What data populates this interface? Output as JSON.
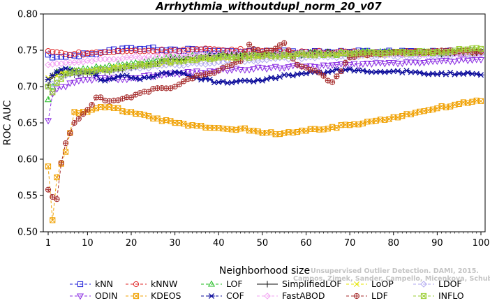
{
  "chart_data": {
    "type": "line",
    "title": "Arrhythmia_withoutdupl_norm_20_v07",
    "xlabel": "Neighborhood size",
    "ylabel": "ROC AUC",
    "xlim": [
      1,
      100
    ],
    "ylim": [
      0.5,
      0.8
    ],
    "x_ticks": [
      "1",
      "10",
      "20",
      "30",
      "40",
      "50",
      "60",
      "70",
      "80",
      "90",
      "100"
    ],
    "x_tick_values": [
      1,
      10,
      20,
      30,
      40,
      50,
      60,
      70,
      80,
      90,
      100
    ],
    "y_ticks": [
      "0.50",
      "0.55",
      "0.60",
      "0.65",
      "0.70",
      "0.75",
      "0.80"
    ],
    "y_tick_values": [
      0.5,
      0.55,
      0.6,
      0.65,
      0.7,
      0.75,
      0.8
    ],
    "grid": false,
    "legend_placement": "bottom",
    "watermark_lines": [
      "Campos, Zimek, Sander, Campello, Micenkova, Schubert, Assent, Houle",
      "Unsupervised Outlier Detection. DAMI, 2015."
    ],
    "series": [
      {
        "name": "kNN",
        "color": "#1f1fd8",
        "dash": "4,3",
        "marker": "square",
        "anchors": [
          [
            1,
            0.744
          ],
          [
            2,
            0.74
          ],
          [
            5,
            0.741
          ],
          [
            10,
            0.745
          ],
          [
            20,
            0.753
          ],
          [
            30,
            0.751
          ],
          [
            40,
            0.749
          ],
          [
            50,
            0.748
          ],
          [
            60,
            0.748
          ],
          [
            70,
            0.748
          ],
          [
            80,
            0.748
          ],
          [
            90,
            0.748
          ],
          [
            100,
            0.748
          ]
        ]
      },
      {
        "name": "kNNW",
        "color": "#e02a2a",
        "dash": "4,3",
        "marker": "circle",
        "anchors": [
          [
            1,
            0.749
          ],
          [
            2,
            0.748
          ],
          [
            5,
            0.745
          ],
          [
            10,
            0.746
          ],
          [
            20,
            0.749
          ],
          [
            30,
            0.75
          ],
          [
            40,
            0.751
          ],
          [
            50,
            0.749
          ],
          [
            60,
            0.748
          ],
          [
            70,
            0.747
          ],
          [
            80,
            0.747
          ],
          [
            90,
            0.747
          ],
          [
            100,
            0.747
          ]
        ]
      },
      {
        "name": "LOF",
        "color": "#22bb22",
        "dash": "4,3",
        "marker": "triangle-up",
        "anchors": [
          [
            1,
            0.682
          ],
          [
            2,
            0.7
          ],
          [
            3,
            0.72
          ],
          [
            5,
            0.722
          ],
          [
            10,
            0.724
          ],
          [
            20,
            0.732
          ],
          [
            30,
            0.74
          ],
          [
            40,
            0.743
          ],
          [
            50,
            0.745
          ],
          [
            60,
            0.745
          ],
          [
            70,
            0.746
          ],
          [
            80,
            0.747
          ],
          [
            90,
            0.747
          ],
          [
            100,
            0.748
          ]
        ]
      },
      {
        "name": "SimplifiedLOF",
        "color": "#111111",
        "dash": "",
        "marker": "plus",
        "anchors": [
          [
            1,
            0.702
          ],
          [
            2,
            0.715
          ],
          [
            3,
            0.72
          ],
          [
            5,
            0.716
          ],
          [
            10,
            0.718
          ],
          [
            20,
            0.726
          ],
          [
            30,
            0.738
          ],
          [
            40,
            0.742
          ],
          [
            50,
            0.744
          ],
          [
            60,
            0.745
          ],
          [
            70,
            0.746
          ],
          [
            80,
            0.746
          ],
          [
            90,
            0.746
          ],
          [
            100,
            0.746
          ]
        ]
      },
      {
        "name": "LoOP",
        "color": "#e5e500",
        "dash": "4,3",
        "marker": "x",
        "anchors": [
          [
            1,
            0.712
          ],
          [
            5,
            0.72
          ],
          [
            10,
            0.722
          ],
          [
            20,
            0.728
          ],
          [
            30,
            0.734
          ],
          [
            40,
            0.738
          ],
          [
            50,
            0.74
          ],
          [
            60,
            0.742
          ],
          [
            70,
            0.744
          ],
          [
            80,
            0.745
          ],
          [
            90,
            0.746
          ],
          [
            100,
            0.747
          ]
        ]
      },
      {
        "name": "LDOF",
        "color": "#b0a8f0",
        "dash": "4,3",
        "marker": "diamond",
        "anchors": [
          [
            1,
            0.7
          ],
          [
            5,
            0.715
          ],
          [
            10,
            0.72
          ],
          [
            20,
            0.725
          ],
          [
            30,
            0.73
          ],
          [
            40,
            0.734
          ],
          [
            50,
            0.737
          ],
          [
            60,
            0.74
          ],
          [
            70,
            0.741
          ],
          [
            80,
            0.742
          ],
          [
            90,
            0.743
          ],
          [
            100,
            0.744
          ]
        ]
      },
      {
        "name": "ODIN",
        "color": "#8a2be2",
        "dash": "4,3",
        "marker": "triangle-down",
        "anchors": [
          [
            1,
            0.653
          ],
          [
            2,
            0.69
          ],
          [
            4,
            0.7
          ],
          [
            10,
            0.71
          ],
          [
            20,
            0.712
          ],
          [
            30,
            0.718
          ],
          [
            40,
            0.722
          ],
          [
            50,
            0.726
          ],
          [
            60,
            0.728
          ],
          [
            70,
            0.73
          ],
          [
            80,
            0.733
          ],
          [
            90,
            0.735
          ],
          [
            100,
            0.737
          ]
        ]
      },
      {
        "name": "KDEOS",
        "color": "#f0a000",
        "dash": "4,3",
        "marker": "square-x",
        "anchors": [
          [
            1,
            0.59
          ],
          [
            2,
            0.516
          ],
          [
            3,
            0.575
          ],
          [
            5,
            0.61
          ],
          [
            7,
            0.665
          ],
          [
            10,
            0.665
          ],
          [
            12,
            0.67
          ],
          [
            15,
            0.672
          ],
          [
            20,
            0.665
          ],
          [
            25,
            0.656
          ],
          [
            30,
            0.65
          ],
          [
            35,
            0.646
          ],
          [
            40,
            0.643
          ],
          [
            45,
            0.642
          ],
          [
            50,
            0.636
          ],
          [
            55,
            0.636
          ],
          [
            60,
            0.639
          ],
          [
            65,
            0.642
          ],
          [
            70,
            0.647
          ],
          [
            75,
            0.652
          ],
          [
            80,
            0.658
          ],
          [
            85,
            0.664
          ],
          [
            90,
            0.67
          ],
          [
            95,
            0.676
          ],
          [
            100,
            0.68
          ]
        ]
      },
      {
        "name": "COF",
        "color": "#0a0a9a",
        "dash": "4,3",
        "marker": "asterisk",
        "anchors": [
          [
            1,
            0.71
          ],
          [
            3,
            0.72
          ],
          [
            5,
            0.725
          ],
          [
            10,
            0.72
          ],
          [
            14,
            0.708
          ],
          [
            18,
            0.715
          ],
          [
            22,
            0.71
          ],
          [
            26,
            0.716
          ],
          [
            30,
            0.72
          ],
          [
            35,
            0.712
          ],
          [
            40,
            0.706
          ],
          [
            45,
            0.708
          ],
          [
            50,
            0.708
          ],
          [
            55,
            0.716
          ],
          [
            60,
            0.718
          ],
          [
            65,
            0.72
          ],
          [
            70,
            0.724
          ],
          [
            75,
            0.72
          ],
          [
            80,
            0.721
          ],
          [
            85,
            0.72
          ],
          [
            90,
            0.717
          ],
          [
            95,
            0.718
          ],
          [
            100,
            0.716
          ]
        ]
      },
      {
        "name": "FastABOD",
        "color": "#f2a0f2",
        "dash": "4,3",
        "marker": "diamond",
        "anchors": [
          [
            1,
            0.73
          ],
          [
            5,
            0.733
          ],
          [
            10,
            0.736
          ],
          [
            20,
            0.74
          ],
          [
            30,
            0.743
          ],
          [
            40,
            0.744
          ],
          [
            50,
            0.745
          ],
          [
            60,
            0.745
          ],
          [
            70,
            0.745
          ],
          [
            80,
            0.745
          ],
          [
            90,
            0.746
          ],
          [
            100,
            0.746
          ]
        ]
      },
      {
        "name": "LDF",
        "color": "#a52a2a",
        "dash": "4,3",
        "marker": "circle-plus",
        "anchors": [
          [
            1,
            0.558
          ],
          [
            2,
            0.548
          ],
          [
            3,
            0.545
          ],
          [
            4,
            0.595
          ],
          [
            5,
            0.622
          ],
          [
            7,
            0.65
          ],
          [
            10,
            0.668
          ],
          [
            12,
            0.685
          ],
          [
            15,
            0.68
          ],
          [
            20,
            0.685
          ],
          [
            25,
            0.697
          ],
          [
            30,
            0.7
          ],
          [
            35,
            0.715
          ],
          [
            40,
            0.722
          ],
          [
            45,
            0.735
          ],
          [
            47,
            0.758
          ],
          [
            50,
            0.745
          ],
          [
            55,
            0.76
          ],
          [
            58,
            0.73
          ],
          [
            62,
            0.722
          ],
          [
            66,
            0.706
          ],
          [
            70,
            0.74
          ],
          [
            75,
            0.745
          ],
          [
            80,
            0.748
          ],
          [
            90,
            0.749
          ],
          [
            100,
            0.748
          ]
        ]
      },
      {
        "name": "INFLO",
        "color": "#9acd32",
        "dash": "4,3",
        "marker": "square-x",
        "anchors": [
          [
            1,
            0.7
          ],
          [
            2,
            0.692
          ],
          [
            3,
            0.705
          ],
          [
            5,
            0.718
          ],
          [
            10,
            0.72
          ],
          [
            20,
            0.728
          ],
          [
            30,
            0.735
          ],
          [
            40,
            0.74
          ],
          [
            50,
            0.742
          ],
          [
            60,
            0.744
          ],
          [
            70,
            0.745
          ],
          [
            80,
            0.747
          ],
          [
            90,
            0.748
          ],
          [
            100,
            0.752
          ]
        ]
      }
    ]
  }
}
